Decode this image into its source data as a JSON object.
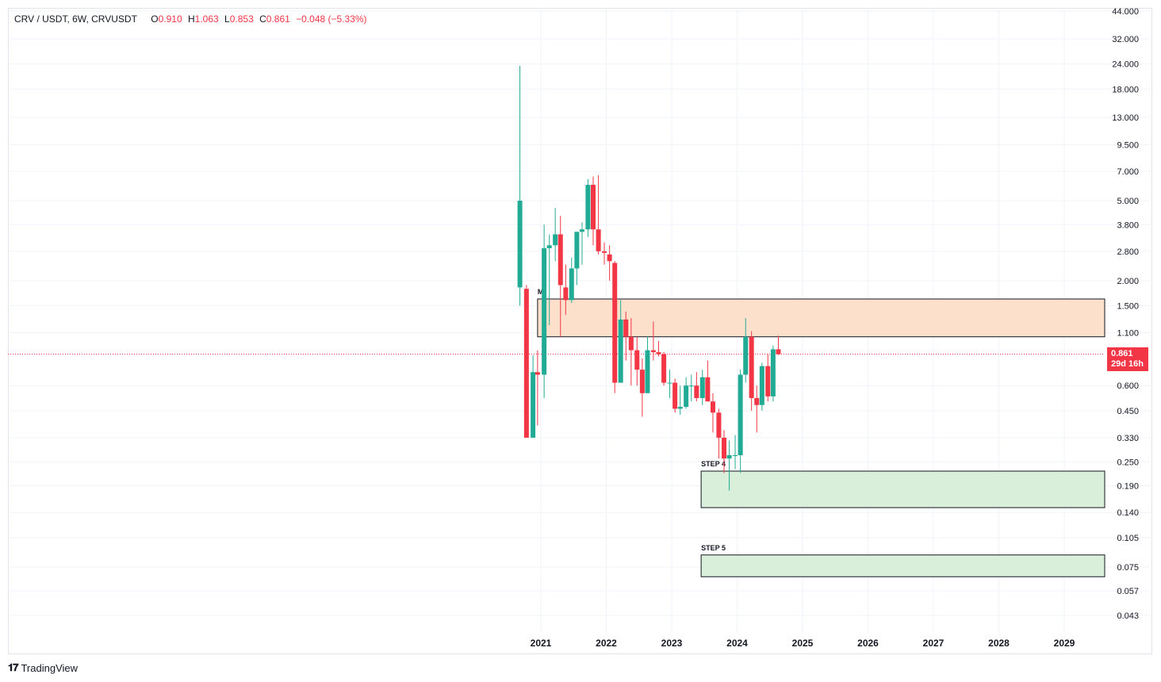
{
  "legend": {
    "symbol": "CRV / USDT, 6W, CRVUSDT",
    "o_label": "O",
    "o_value": "0.910",
    "h_label": "H",
    "h_value": "1.063",
    "l_label": "L",
    "l_value": "0.853",
    "c_label": "C",
    "c_value": "0.861",
    "change": "−0.048 (−5.33%)"
  },
  "price_badge": {
    "price": "0.861",
    "countdown": "29d 16h"
  },
  "brand": {
    "logo": "𝟏𝟕",
    "name": "TradingView"
  },
  "colors": {
    "up": "#22ab94",
    "down": "#f23645",
    "resistance_fill": "#fde0cc",
    "support_fill": "#d9efd9",
    "grid": "#f0f3fa"
  },
  "chart_data": {
    "type": "candlestick",
    "y_scale": "log",
    "y_ticks": [
      "44.000",
      "32.000",
      "24.000",
      "18.000",
      "13.000",
      "9.500",
      "7.000",
      "5.000",
      "3.800",
      "2.800",
      "2.000",
      "1.500",
      "1.100",
      "0.600",
      "0.450",
      "0.330",
      "0.250",
      "0.190",
      "0.140",
      "0.105",
      "0.075",
      "0.057",
      "0.043"
    ],
    "x_ticks": [
      "2021",
      "2022",
      "2023",
      "2024",
      "2025",
      "2026",
      "2027",
      "2028",
      "2029"
    ],
    "last_price": 0.861,
    "candles": [
      {
        "t": 2020.68,
        "o": 1.85,
        "h": 23.5,
        "l": 1.5,
        "c": 5.0
      },
      {
        "t": 2020.78,
        "o": 1.82,
        "h": 1.9,
        "l": 0.33,
        "c": 0.33
      },
      {
        "t": 2020.88,
        "o": 0.33,
        "h": 0.85,
        "l": 0.33,
        "c": 0.7
      },
      {
        "t": 2020.95,
        "o": 0.7,
        "h": 0.9,
        "l": 0.38,
        "c": 0.68
      },
      {
        "t": 2021.05,
        "o": 0.68,
        "h": 3.8,
        "l": 0.52,
        "c": 2.9
      },
      {
        "t": 2021.13,
        "o": 2.9,
        "h": 3.4,
        "l": 1.2,
        "c": 3.0
      },
      {
        "t": 2021.22,
        "o": 3.0,
        "h": 4.6,
        "l": 2.5,
        "c": 3.4
      },
      {
        "t": 2021.3,
        "o": 3.4,
        "h": 4.2,
        "l": 1.05,
        "c": 1.9
      },
      {
        "t": 2021.38,
        "o": 1.85,
        "h": 2.4,
        "l": 1.35,
        "c": 1.6
      },
      {
        "t": 2021.47,
        "o": 1.6,
        "h": 2.6,
        "l": 1.55,
        "c": 2.3
      },
      {
        "t": 2021.55,
        "o": 2.3,
        "h": 3.5,
        "l": 1.9,
        "c": 3.5
      },
      {
        "t": 2021.63,
        "o": 3.5,
        "h": 3.9,
        "l": 2.4,
        "c": 3.6
      },
      {
        "t": 2021.72,
        "o": 3.6,
        "h": 6.4,
        "l": 3.3,
        "c": 6.0
      },
      {
        "t": 2021.8,
        "o": 6.0,
        "h": 6.6,
        "l": 3.0,
        "c": 3.6
      },
      {
        "t": 2021.88,
        "o": 3.6,
        "h": 6.7,
        "l": 2.7,
        "c": 2.8
      },
      {
        "t": 2021.97,
        "o": 2.8,
        "h": 3.1,
        "l": 2.4,
        "c": 2.75
      },
      {
        "t": 2022.05,
        "o": 2.7,
        "h": 3.0,
        "l": 2.0,
        "c": 2.5
      },
      {
        "t": 2022.13,
        "o": 2.45,
        "h": 2.5,
        "l": 0.55,
        "c": 0.62
      },
      {
        "t": 2022.22,
        "o": 0.62,
        "h": 1.6,
        "l": 0.62,
        "c": 1.28
      },
      {
        "t": 2022.3,
        "o": 1.28,
        "h": 1.4,
        "l": 0.8,
        "c": 1.05
      },
      {
        "t": 2022.38,
        "o": 1.05,
        "h": 1.3,
        "l": 0.6,
        "c": 0.9
      },
      {
        "t": 2022.47,
        "o": 0.9,
        "h": 1.05,
        "l": 0.6,
        "c": 0.72
      },
      {
        "t": 2022.55,
        "o": 0.72,
        "h": 0.82,
        "l": 0.42,
        "c": 0.55
      },
      {
        "t": 2022.63,
        "o": 0.55,
        "h": 1.05,
        "l": 0.55,
        "c": 0.9
      },
      {
        "t": 2022.72,
        "o": 0.9,
        "h": 1.25,
        "l": 0.8,
        "c": 0.88
      },
      {
        "t": 2022.8,
        "o": 0.88,
        "h": 1.0,
        "l": 0.84,
        "c": 0.86
      },
      {
        "t": 2022.88,
        "o": 0.86,
        "h": 0.88,
        "l": 0.6,
        "c": 0.62
      },
      {
        "t": 2022.97,
        "o": 0.62,
        "h": 0.72,
        "l": 0.52,
        "c": 0.62
      },
      {
        "t": 2023.05,
        "o": 0.62,
        "h": 0.65,
        "l": 0.44,
        "c": 0.46
      },
      {
        "t": 2023.13,
        "o": 0.46,
        "h": 0.6,
        "l": 0.43,
        "c": 0.47
      },
      {
        "t": 2023.22,
        "o": 0.47,
        "h": 0.66,
        "l": 0.46,
        "c": 0.6
      },
      {
        "t": 2023.3,
        "o": 0.6,
        "h": 0.68,
        "l": 0.5,
        "c": 0.6
      },
      {
        "t": 2023.38,
        "o": 0.6,
        "h": 0.7,
        "l": 0.5,
        "c": 0.52
      },
      {
        "t": 2023.47,
        "o": 0.52,
        "h": 0.72,
        "l": 0.48,
        "c": 0.66
      },
      {
        "t": 2023.55,
        "o": 0.66,
        "h": 0.8,
        "l": 0.5,
        "c": 0.5
      },
      {
        "t": 2023.63,
        "o": 0.5,
        "h": 0.55,
        "l": 0.35,
        "c": 0.44
      },
      {
        "t": 2023.72,
        "o": 0.44,
        "h": 0.46,
        "l": 0.26,
        "c": 0.33
      },
      {
        "t": 2023.8,
        "o": 0.33,
        "h": 0.36,
        "l": 0.22,
        "c": 0.26
      },
      {
        "t": 2023.88,
        "o": 0.26,
        "h": 0.32,
        "l": 0.18,
        "c": 0.27
      },
      {
        "t": 2023.97,
        "o": 0.27,
        "h": 0.34,
        "l": 0.23,
        "c": 0.27
      },
      {
        "t": 2024.05,
        "o": 0.27,
        "h": 0.72,
        "l": 0.22,
        "c": 0.68
      },
      {
        "t": 2024.13,
        "o": 0.68,
        "h": 1.3,
        "l": 0.62,
        "c": 1.05
      },
      {
        "t": 2024.22,
        "o": 1.05,
        "h": 1.12,
        "l": 0.45,
        "c": 0.52
      },
      {
        "t": 2024.3,
        "o": 0.52,
        "h": 0.6,
        "l": 0.35,
        "c": 0.48
      },
      {
        "t": 2024.38,
        "o": 0.48,
        "h": 0.78,
        "l": 0.45,
        "c": 0.75
      },
      {
        "t": 2024.47,
        "o": 0.75,
        "h": 0.86,
        "l": 0.5,
        "c": 0.53
      },
      {
        "t": 2024.55,
        "o": 0.53,
        "h": 0.95,
        "l": 0.5,
        "c": 0.91
      },
      {
        "t": 2024.63,
        "o": 0.91,
        "h": 1.063,
        "l": 0.853,
        "c": 0.861
      }
    ],
    "zones": [
      {
        "label": "M",
        "y_low": 1.05,
        "y_high": 1.62,
        "t_start": 2020.95,
        "style": "resistance"
      },
      {
        "label": "STEP 4",
        "y_low": 0.148,
        "y_high": 0.225,
        "t_start": 2023.45,
        "style": "support"
      },
      {
        "label": "STEP 5",
        "y_low": 0.067,
        "y_high": 0.086,
        "t_start": 2023.45,
        "style": "support"
      }
    ]
  }
}
